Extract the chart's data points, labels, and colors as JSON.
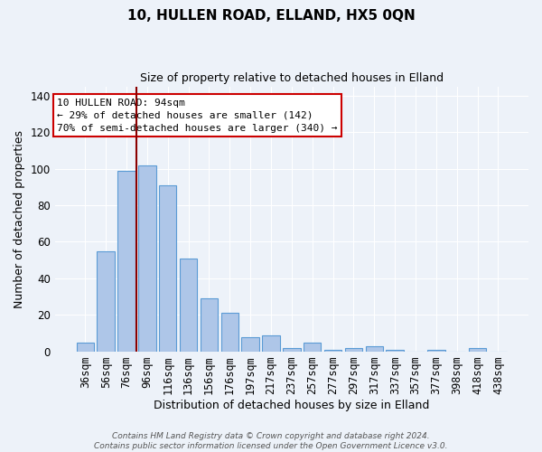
{
  "title": "10, HULLEN ROAD, ELLAND, HX5 0QN",
  "subtitle": "Size of property relative to detached houses in Elland",
  "xlabel": "Distribution of detached houses by size in Elland",
  "ylabel": "Number of detached properties",
  "bar_labels": [
    "36sqm",
    "56sqm",
    "76sqm",
    "96sqm",
    "116sqm",
    "136sqm",
    "156sqm",
    "176sqm",
    "197sqm",
    "217sqm",
    "237sqm",
    "257sqm",
    "277sqm",
    "297sqm",
    "317sqm",
    "337sqm",
    "357sqm",
    "377sqm",
    "398sqm",
    "418sqm",
    "438sqm"
  ],
  "bar_values": [
    5,
    55,
    99,
    102,
    91,
    51,
    29,
    21,
    8,
    9,
    2,
    5,
    1,
    2,
    3,
    1,
    0,
    1,
    0,
    2,
    0
  ],
  "bar_color": "#aec6e8",
  "bar_edge_color": "#5b9bd5",
  "bg_color": "#edf2f9",
  "grid_color": "#ffffff",
  "vline_color": "#8b0000",
  "vline_x_index": 2.5,
  "annotation_text": "10 HULLEN ROAD: 94sqm\n← 29% of detached houses are smaller (142)\n70% of semi-detached houses are larger (340) →",
  "annotation_box_color": "#ffffff",
  "annotation_box_edge": "#cc0000",
  "ylim": [
    0,
    145
  ],
  "yticks": [
    0,
    20,
    40,
    60,
    80,
    100,
    120,
    140
  ],
  "footnote": "Contains HM Land Registry data © Crown copyright and database right 2024.\nContains public sector information licensed under the Open Government Licence v3.0."
}
